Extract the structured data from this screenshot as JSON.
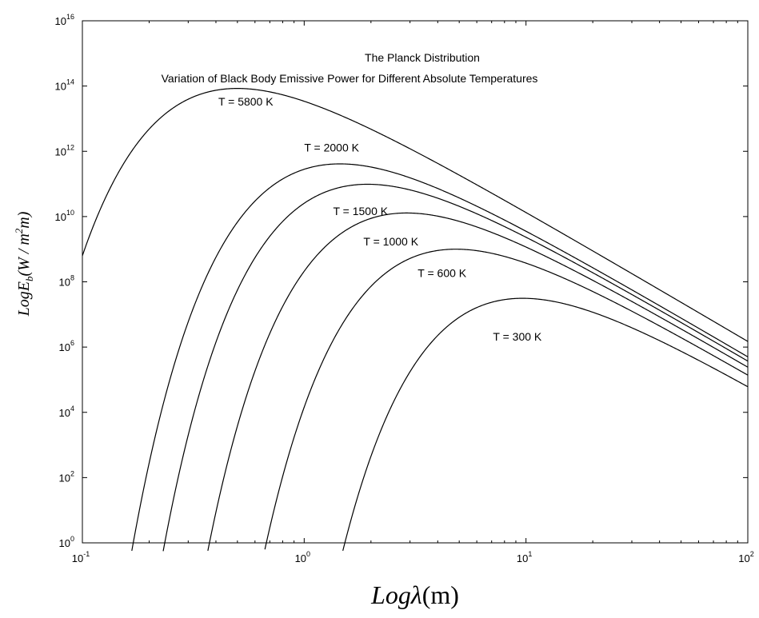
{
  "chart_data": {
    "type": "line",
    "title": "The Planck Distribution",
    "subtitle": "Variation of Black Body Emissive Power for Different Absolute Temperatures",
    "xlabel": {
      "base": "Log",
      "symbol": "λ",
      "unit": "(m)"
    },
    "ylabel": {
      "base": "LogE",
      "sub": "b",
      "unit_open": "(W / m",
      "unit_sup": "2",
      "unit_close": "m)"
    },
    "x_scale": "log",
    "y_scale": "log",
    "xlim": [
      0.1,
      100
    ],
    "ylim": [
      1,
      1e+16
    ],
    "x_ticks": [
      {
        "value": 0.1,
        "base": "10",
        "exp": "-1"
      },
      {
        "value": 1,
        "base": "10",
        "exp": "0"
      },
      {
        "value": 10,
        "base": "10",
        "exp": "1"
      },
      {
        "value": 100,
        "base": "10",
        "exp": "2"
      }
    ],
    "y_ticks": [
      {
        "value": 1,
        "base": "10",
        "exp": "0"
      },
      {
        "value": 100,
        "base": "10",
        "exp": "2"
      },
      {
        "value": 10000,
        "base": "10",
        "exp": "4"
      },
      {
        "value": 1000000,
        "base": "10",
        "exp": "6"
      },
      {
        "value": 100000000,
        "base": "10",
        "exp": "8"
      },
      {
        "value": 10000000000,
        "base": "10",
        "exp": "10"
      },
      {
        "value": 1000000000000,
        "base": "10",
        "exp": "12"
      },
      {
        "value": 100000000000000,
        "base": "10",
        "exp": "14"
      },
      {
        "value": 10000000000000000,
        "base": "10",
        "exp": "16"
      }
    ],
    "grid": false,
    "series": [
      {
        "name": "T = 5800 K",
        "temperature": 5800,
        "label_x": 0.41,
        "label_y": 25000000000000.0
      },
      {
        "name": "T = 2000 K",
        "temperature": 2000,
        "label_x": 1.0,
        "label_y": 1000000000000.0
      },
      {
        "name": "T = 1500 K",
        "temperature": 1500,
        "label_x": 1.35,
        "label_y": 11000000000.0
      },
      {
        "name": "T = 1000 K",
        "temperature": 1000,
        "label_x": 1.85,
        "label_y": 1300000000.0
      },
      {
        "name": "T = 600 K",
        "temperature": 600,
        "label_x": 3.25,
        "label_y": 140000000.0
      },
      {
        "name": "T = 300 K",
        "temperature": 300,
        "label_x": 7.1,
        "label_y": 1600000.0
      }
    ],
    "line_color": "#000000"
  }
}
